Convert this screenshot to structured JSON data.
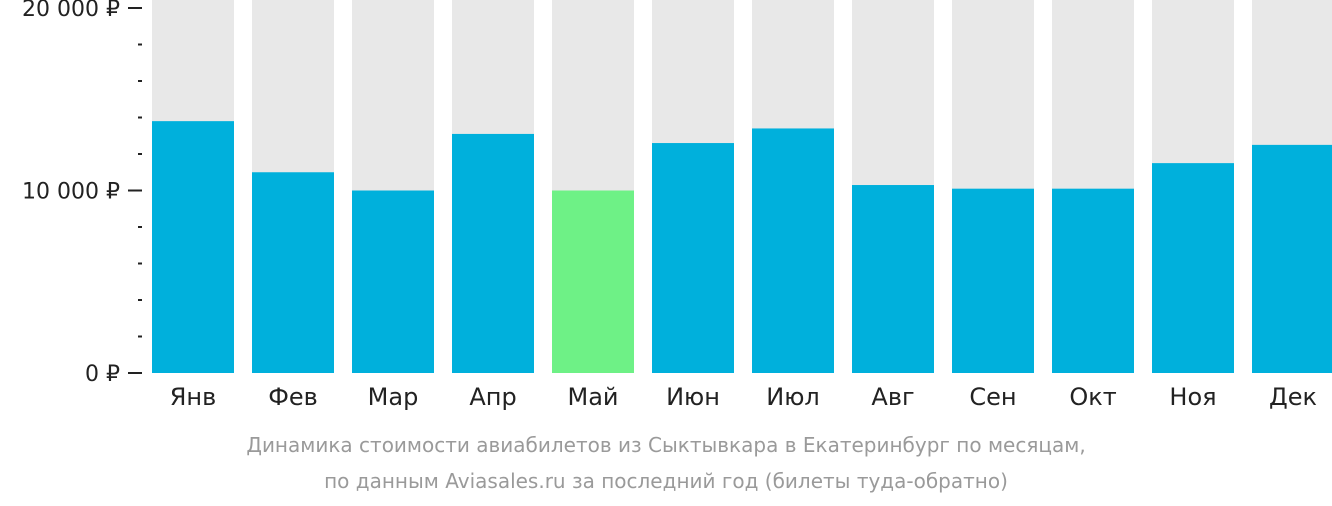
{
  "chart_data": {
    "type": "bar",
    "categories": [
      "Янв",
      "Фев",
      "Мар",
      "Апр",
      "Май",
      "Июн",
      "Июл",
      "Авг",
      "Сен",
      "Окт",
      "Ноя",
      "Дек"
    ],
    "values": [
      13800,
      11000,
      10000,
      13100,
      10000,
      12600,
      13400,
      10300,
      10100,
      10100,
      11500,
      12500
    ],
    "highlight_index": 4,
    "ylim": [
      0,
      20000
    ],
    "y_major_ticks": [
      0,
      10000,
      20000
    ],
    "y_tick_labels": [
      "0 ₽",
      "10 000 ₽",
      "20 000 ₽"
    ],
    "y_minor_step": 2000,
    "colors": {
      "bar": "#00b0dc",
      "highlight": "#6ef186",
      "track": "#e8e8e8",
      "axis": "#222222",
      "caption": "#9a9a9a"
    },
    "grid": false,
    "legend": "none"
  },
  "caption": {
    "line1": "Динамика стоимости авиабилетов из Сыктывкара в Екатеринбург по месяцам,",
    "line2": "по данным Aviasales.ru за последний год (билеты туда-обратно)"
  }
}
